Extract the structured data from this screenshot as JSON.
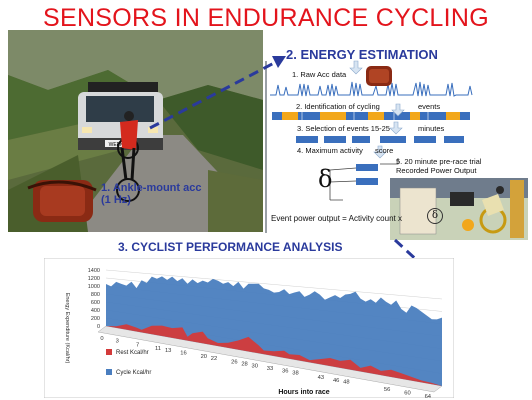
{
  "title": "SENSORS IN ENDURANCE CYCLING",
  "photo": {
    "plate": "WEEK EV",
    "callout": "1. Ankle-mount acc (1 Hz)"
  },
  "energy": {
    "title": "2. ENERGY ESTIMATION",
    "step1": "1. Raw Acc data",
    "step2": "2. Identification of cycling",
    "step2_tail": "events",
    "step3": "3. Selection of events 15-25",
    "step3_tail": "minutes",
    "step4": "4. Maximum activity",
    "step4_tail": "score",
    "delta": "δ",
    "step5_line1": "5. 20 minute pre-race trial",
    "step5_line2": "Recorded Power Output",
    "formula": "Event power output = Activity count x",
    "formula_delta": "δ"
  },
  "analysis": {
    "title": "3. CYCLIST PERFORMANCE ANALYSIS"
  },
  "colors": {
    "title": "#e3141c",
    "section": "#2a3a9c",
    "cycle": "#4a7ebf",
    "rest": "#d33a3a",
    "event": "#3a6fbd",
    "highlight": "#f2a71b"
  },
  "chart_data": {
    "type": "area",
    "ylabel": "Energy Expenditure (Kcal/hr)",
    "xlabel": "Hours into race",
    "y_ticks": [
      "1400",
      "1200",
      "1000",
      "800",
      "600",
      "400",
      "200",
      "0"
    ],
    "ylim": [
      0,
      1400
    ],
    "x_ticks": [
      "0",
      "3",
      "7",
      "11",
      "13",
      "16",
      "20",
      "22",
      "26",
      "28",
      "30",
      "33",
      "36",
      "38",
      "43",
      "46",
      "48",
      "56",
      "60",
      "64"
    ],
    "xlim": [
      0,
      66
    ],
    "series": [
      {
        "name": "Rest Kcal/hr",
        "color": "#d33a3a",
        "values": [
          [
            0,
            0
          ],
          [
            2,
            40
          ],
          [
            4,
            130
          ],
          [
            6,
            90
          ],
          [
            7,
            60
          ],
          [
            9,
            190
          ],
          [
            11,
            230
          ],
          [
            13,
            210
          ],
          [
            15,
            260
          ],
          [
            16,
            80
          ],
          [
            17,
            170
          ],
          [
            19,
            240
          ],
          [
            20,
            120
          ],
          [
            22,
            60
          ],
          [
            24,
            100
          ],
          [
            26,
            180
          ],
          [
            28,
            280
          ],
          [
            30,
            150
          ],
          [
            31,
            70
          ],
          [
            33,
            90
          ],
          [
            35,
            130
          ],
          [
            36,
            80
          ],
          [
            38,
            100
          ],
          [
            40,
            40
          ],
          [
            42,
            90
          ],
          [
            44,
            140
          ],
          [
            46,
            120
          ],
          [
            48,
            170
          ],
          [
            50,
            60
          ],
          [
            52,
            130
          ],
          [
            54,
            70
          ],
          [
            56,
            120
          ],
          [
            58,
            90
          ],
          [
            60,
            60
          ],
          [
            62,
            30
          ],
          [
            64,
            20
          ],
          [
            66,
            0
          ]
        ]
      },
      {
        "name": "Cycle Kcal/hr",
        "color": "#4a7ebf",
        "values": [
          [
            0,
            1050
          ],
          [
            1,
            1000
          ],
          [
            2,
            1120
          ],
          [
            3,
            1080
          ],
          [
            4,
            1050
          ],
          [
            5,
            1150
          ],
          [
            6,
            1010
          ],
          [
            7,
            1200
          ],
          [
            8,
            1150
          ],
          [
            9,
            1300
          ],
          [
            10,
            1260
          ],
          [
            11,
            1320
          ],
          [
            12,
            1250
          ],
          [
            13,
            1330
          ],
          [
            14,
            1240
          ],
          [
            15,
            1310
          ],
          [
            16,
            1200
          ],
          [
            17,
            1300
          ],
          [
            18,
            1230
          ],
          [
            19,
            1290
          ],
          [
            20,
            1260
          ],
          [
            21,
            1340
          ],
          [
            22,
            1310
          ],
          [
            23,
            1260
          ],
          [
            24,
            1300
          ],
          [
            25,
            1230
          ],
          [
            26,
            1320
          ],
          [
            27,
            1200
          ],
          [
            28,
            1300
          ],
          [
            29,
            1310
          ],
          [
            30,
            1320
          ],
          [
            31,
            1240
          ],
          [
            32,
            1220
          ],
          [
            33,
            1180
          ],
          [
            34,
            1200
          ],
          [
            35,
            1260
          ],
          [
            36,
            1180
          ],
          [
            37,
            1220
          ],
          [
            38,
            1250
          ],
          [
            39,
            1160
          ],
          [
            40,
            1210
          ],
          [
            41,
            1280
          ],
          [
            42,
            1230
          ],
          [
            43,
            1150
          ],
          [
            44,
            1200
          ],
          [
            45,
            1250
          ],
          [
            46,
            1210
          ],
          [
            47,
            1280
          ],
          [
            48,
            1300
          ],
          [
            49,
            1350
          ],
          [
            50,
            1240
          ],
          [
            51,
            1200
          ],
          [
            52,
            1250
          ],
          [
            53,
            1200
          ],
          [
            54,
            1300
          ],
          [
            55,
            1240
          ],
          [
            56,
            1200
          ],
          [
            57,
            1280
          ],
          [
            58,
            1150
          ],
          [
            59,
            1100
          ],
          [
            60,
            1230
          ],
          [
            61,
            1200
          ],
          [
            62,
            1150
          ],
          [
            63,
            1100
          ],
          [
            64,
            1050
          ],
          [
            65,
            1060
          ],
          [
            66,
            1100
          ]
        ]
      }
    ],
    "legend_position": "bottom-left"
  }
}
